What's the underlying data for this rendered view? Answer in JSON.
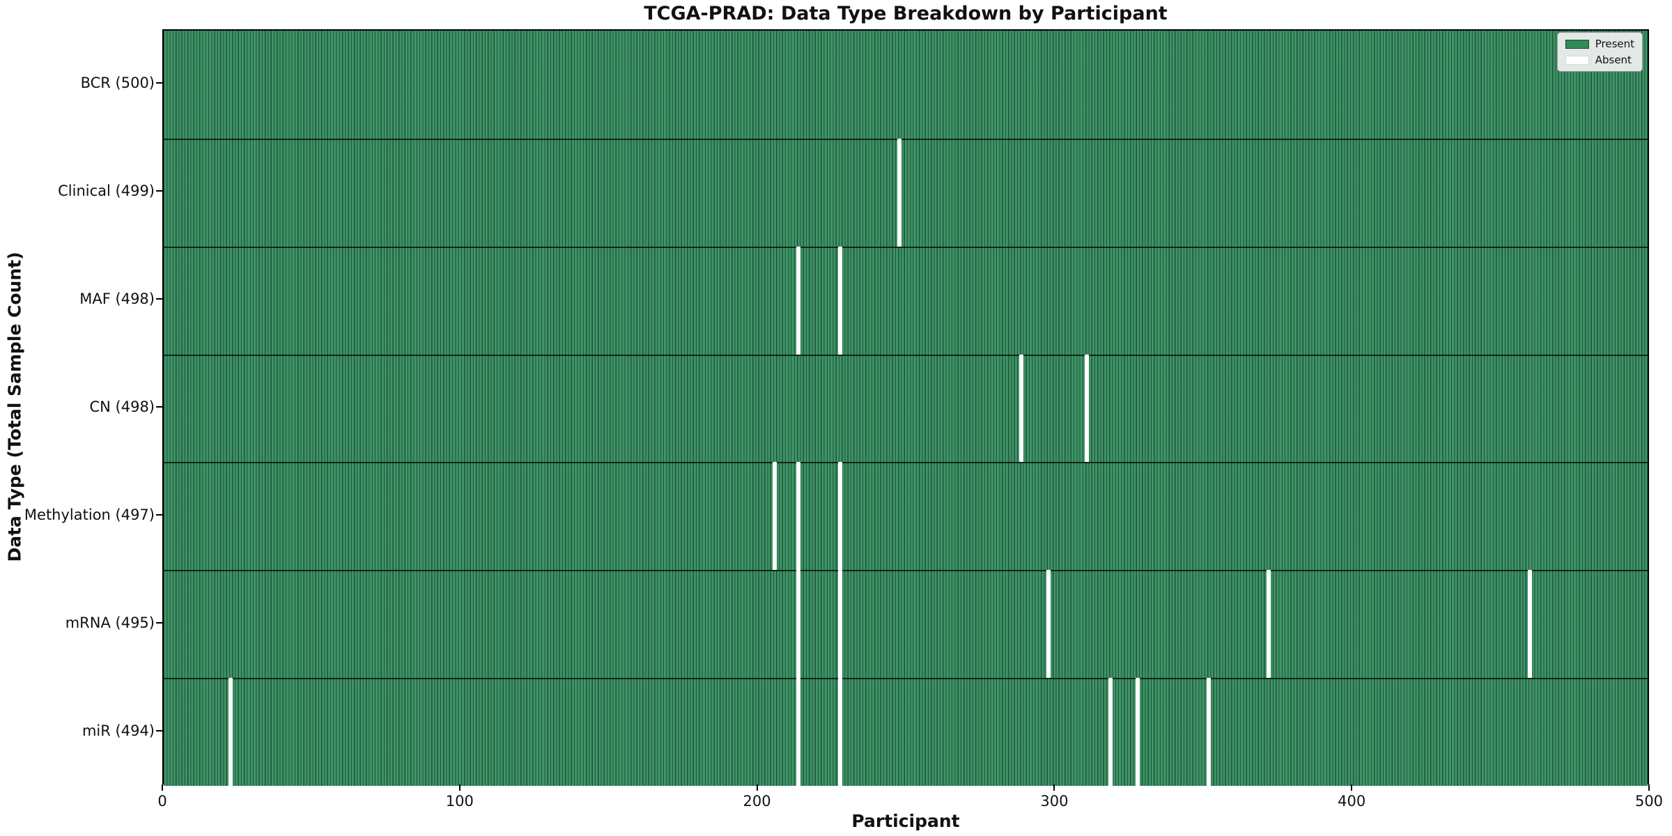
{
  "chart_data": {
    "type": "heatmap",
    "title": "TCGA-PRAD: Data Type Breakdown by Participant",
    "xlabel": "Participant",
    "ylabel": "Data Type (Total Sample Count)",
    "xlim": [
      0,
      500
    ],
    "n_participants": 500,
    "x_ticks": [
      0,
      100,
      200,
      300,
      400,
      500
    ],
    "grid": false,
    "legend_position": "upper right",
    "legend": [
      {
        "label": "Present",
        "color": "#2e8b57"
      },
      {
        "label": "Absent",
        "color": "#ffffff"
      }
    ],
    "rows": [
      {
        "name": "BCR",
        "label": "BCR (500)",
        "total": 500,
        "absent_participants": []
      },
      {
        "name": "Clinical",
        "label": "Clinical (499)",
        "total": 499,
        "absent_participants": [
          247
        ]
      },
      {
        "name": "MAF",
        "label": "MAF (498)",
        "total": 498,
        "absent_participants": [
          213,
          227
        ]
      },
      {
        "name": "CN",
        "label": "CN (498)",
        "total": 498,
        "absent_participants": [
          288,
          310
        ]
      },
      {
        "name": "Methylation",
        "label": "Methylation (497)",
        "total": 497,
        "absent_participants": [
          205,
          213,
          227
        ]
      },
      {
        "name": "mRNA",
        "label": "mRNA (495)",
        "total": 495,
        "absent_participants": [
          213,
          227,
          297,
          371,
          459
        ]
      },
      {
        "name": "miR",
        "label": "miR (494)",
        "total": 494,
        "absent_participants": [
          22,
          213,
          227,
          318,
          327,
          351
        ]
      }
    ],
    "colors": {
      "present": "#2e8b57",
      "absent": "#ffffff",
      "row_separator": "#0d1f14",
      "plot_border": "#000000"
    }
  }
}
